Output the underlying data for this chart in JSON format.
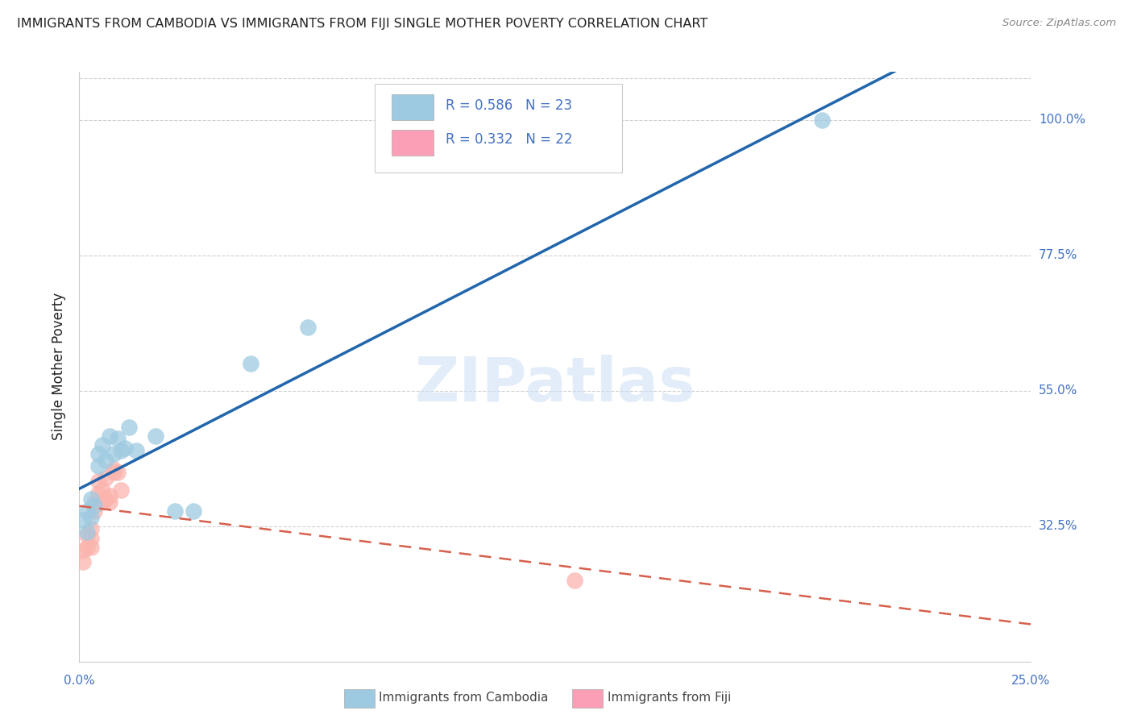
{
  "title": "IMMIGRANTS FROM CAMBODIA VS IMMIGRANTS FROM FIJI SINGLE MOTHER POVERTY CORRELATION CHART",
  "source": "Source: ZipAtlas.com",
  "ylabel": "Single Mother Poverty",
  "xlim": [
    0.0,
    0.25
  ],
  "ylim": [
    0.1,
    1.08
  ],
  "yticks": [
    0.325,
    0.55,
    0.775,
    1.0
  ],
  "ytick_labels": [
    "32.5%",
    "55.0%",
    "77.5%",
    "100.0%"
  ],
  "xtick_positions": [
    0.0,
    0.05,
    0.1,
    0.15,
    0.2,
    0.25
  ],
  "cambodia_color": "#9ecae1",
  "fiji_color": "#fbb4ae",
  "cambodia_line_color": "#2166ac",
  "fiji_line_color": "#d6604d",
  "r_cambodia": 0.586,
  "n_cambodia": 23,
  "r_fiji": 0.332,
  "n_fiji": 22,
  "watermark": "ZIPatlas",
  "background_color": "#ffffff",
  "grid_color": "#d0d0d0",
  "axis_label_color": "#4472c4",
  "title_color": "#222222",
  "cambodia_x": [
    0.001,
    0.002,
    0.002,
    0.003,
    0.003,
    0.004,
    0.005,
    0.005,
    0.006,
    0.007,
    0.008,
    0.009,
    0.01,
    0.011,
    0.012,
    0.013,
    0.015,
    0.02,
    0.025,
    0.03,
    0.045,
    0.06,
    0.195
  ],
  "cambodia_y": [
    0.335,
    0.315,
    0.35,
    0.34,
    0.37,
    0.36,
    0.425,
    0.445,
    0.46,
    0.435,
    0.475,
    0.445,
    0.47,
    0.45,
    0.455,
    0.49,
    0.45,
    0.475,
    0.35,
    0.35,
    0.595,
    0.655,
    1.0
  ],
  "fiji_x": [
    0.001,
    0.001,
    0.002,
    0.002,
    0.003,
    0.003,
    0.003,
    0.004,
    0.004,
    0.005,
    0.005,
    0.006,
    0.006,
    0.007,
    0.007,
    0.008,
    0.008,
    0.009,
    0.009,
    0.01,
    0.011,
    0.13
  ],
  "fiji_y": [
    0.285,
    0.265,
    0.29,
    0.31,
    0.305,
    0.32,
    0.29,
    0.35,
    0.365,
    0.38,
    0.4,
    0.385,
    0.365,
    0.405,
    0.37,
    0.365,
    0.375,
    0.415,
    0.42,
    0.415,
    0.385,
    0.235
  ],
  "legend_box_color": "#4472c4",
  "legend_fiji_color": "#fa9fb5"
}
